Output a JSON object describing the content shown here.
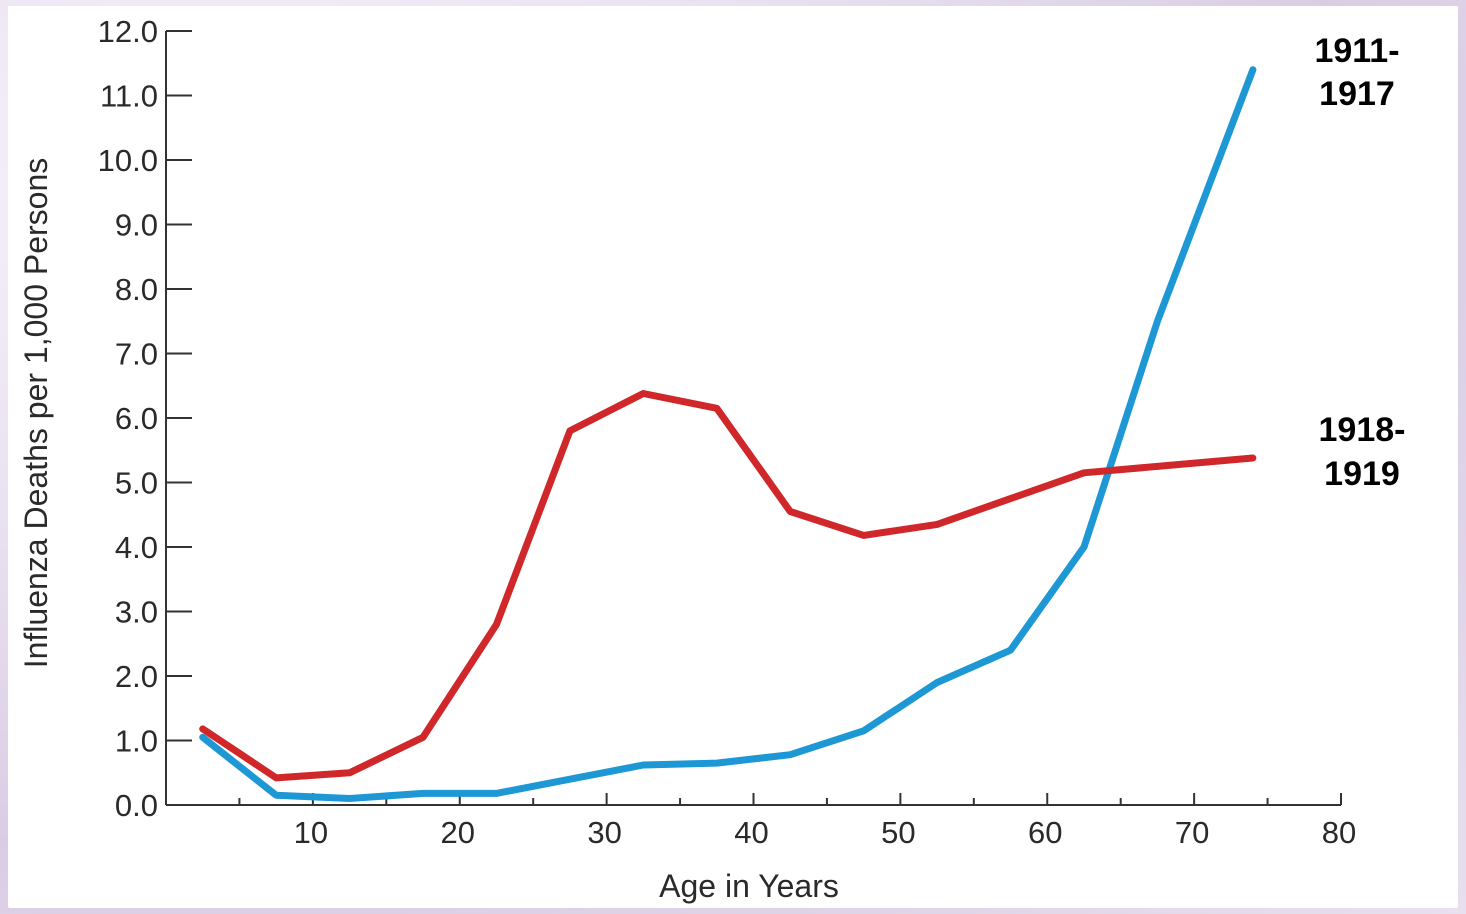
{
  "chart_data": {
    "type": "line",
    "xlabel": "Age in Years",
    "ylabel": "Influenza Deaths per 1,000 Persons",
    "xlim": [
      0,
      80
    ],
    "ylim": [
      0,
      12
    ],
    "x_ticks": [
      10,
      20,
      30,
      40,
      50,
      60,
      70,
      80
    ],
    "x_minor_ticks": [
      5,
      15,
      25,
      35,
      45,
      55,
      65,
      75
    ],
    "y_ticks": [
      0,
      1,
      2,
      3,
      4,
      5,
      6,
      7,
      8,
      9,
      10,
      11,
      12
    ],
    "y_tick_labels": [
      "0.0",
      "1.0",
      "2.0",
      "3.0",
      "4.0",
      "5.0",
      "6.0",
      "7.0",
      "8.0",
      "9.0",
      "10.0",
      "11.0",
      "12.0"
    ],
    "grid": false,
    "series": [
      {
        "name": "1911-1917",
        "label_lines": [
          "1911-",
          "1917"
        ],
        "color": "#1e98d4",
        "x": [
          2.5,
          7.5,
          12.5,
          17.5,
          22.5,
          27.5,
          32.5,
          37.5,
          42.5,
          47.5,
          52.5,
          57.5,
          62.5,
          67.5,
          74
        ],
        "y": [
          1.05,
          0.15,
          0.1,
          0.18,
          0.18,
          0.4,
          0.62,
          0.65,
          0.78,
          1.15,
          1.9,
          2.4,
          4.0,
          7.5,
          11.4
        ]
      },
      {
        "name": "1918-1919",
        "label_lines": [
          "1918-",
          "1919"
        ],
        "color": "#d0282a",
        "x": [
          2.5,
          7.5,
          12.5,
          17.5,
          22.5,
          27.5,
          32.5,
          37.5,
          42.5,
          47.5,
          52.5,
          57.5,
          62.5,
          67.5,
          74
        ],
        "y": [
          1.18,
          0.42,
          0.5,
          1.05,
          2.8,
          5.8,
          6.38,
          6.15,
          4.55,
          4.18,
          4.35,
          4.75,
          5.15,
          5.25,
          5.38
        ]
      }
    ]
  }
}
